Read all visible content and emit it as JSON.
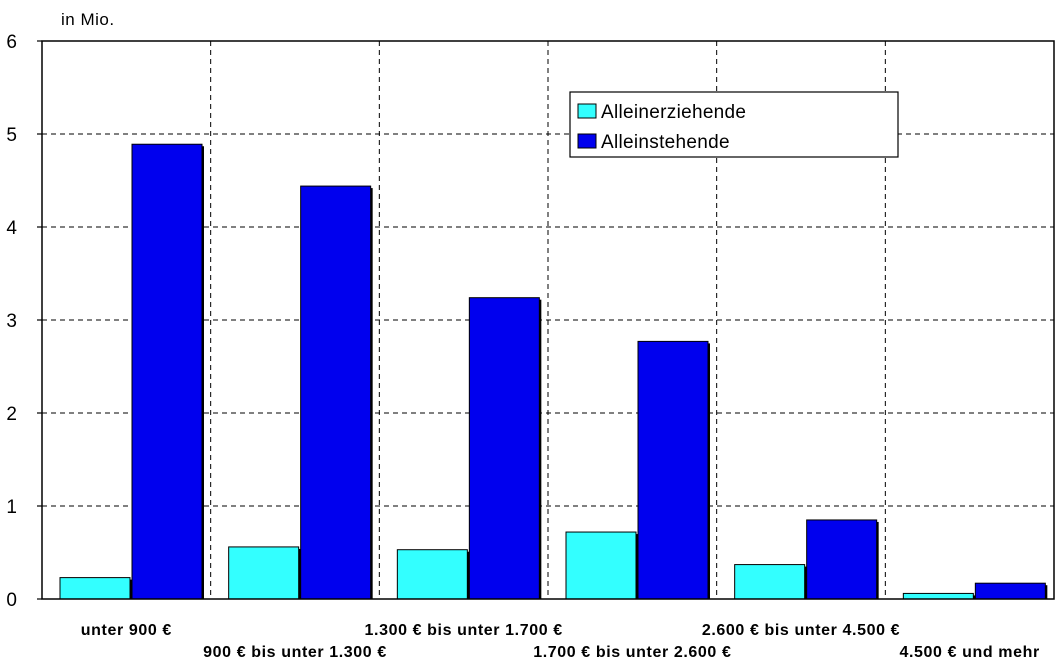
{
  "chart_data": {
    "type": "bar",
    "unit_label": "in Mio.",
    "categories": [
      "unter 900 €",
      "900 € bis unter 1.300 €",
      "1.300 € bis unter 1.700 €",
      "1.700 € bis unter 2.600 €",
      "2.600 € bis unter 4.500 €",
      "4.500 € und mehr"
    ],
    "series": [
      {
        "name": "Alleinerziehende",
        "color": "#33ffff",
        "values": [
          0.23,
          0.56,
          0.53,
          0.72,
          0.37,
          0.06
        ]
      },
      {
        "name": "Alleinstehende",
        "color": "#0000ee",
        "values": [
          4.89,
          4.44,
          3.24,
          2.77,
          0.85,
          0.17
        ]
      }
    ],
    "ylim": [
      0,
      6
    ],
    "yticks": [
      "0",
      "1",
      "2",
      "3",
      "4",
      "5",
      "6"
    ],
    "grid": true,
    "legend_position": "top-right"
  }
}
